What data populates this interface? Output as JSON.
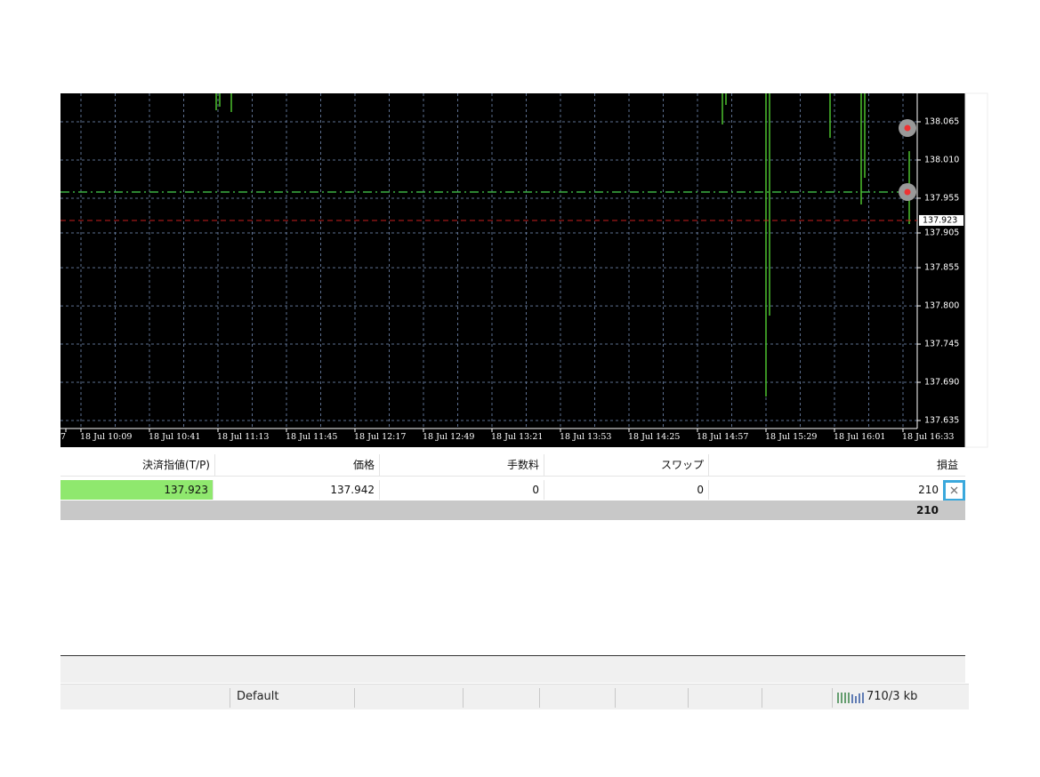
{
  "chart": {
    "price_ticks": [
      "138.065",
      "138.010",
      "137.955",
      "137.905",
      "137.855",
      "137.800",
      "137.745",
      "137.690",
      "137.635"
    ],
    "current_price": "137.923",
    "time_labels": [
      "7",
      "18 Jul 10:09",
      "18 Jul 10:41",
      "18 Jul 11:13",
      "18 Jul 11:45",
      "18 Jul 12:17",
      "18 Jul 12:49",
      "18 Jul 13:21",
      "18 Jul 13:53",
      "18 Jul 14:25",
      "18 Jul 14:57",
      "18 Jul 15:29",
      "18 Jul 16:01",
      "18 Jul 16:33"
    ]
  },
  "table": {
    "headers": [
      "決済指値(T/P)",
      "価格",
      "手数料",
      "スワップ",
      "損益"
    ],
    "rows": [
      [
        "137.923",
        "137.942",
        "0",
        "0",
        "210"
      ]
    ],
    "total": "210"
  },
  "status_bar": {
    "profile": "Default",
    "traffic": "710/3 kb"
  }
}
